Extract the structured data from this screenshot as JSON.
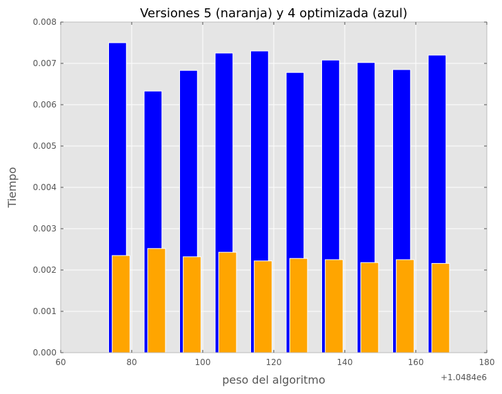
{
  "chart_data": {
    "type": "bar",
    "title": "Versiones 5 (naranja) y 4 optimizada (azul)",
    "xlabel": "peso del algoritmo",
    "ylabel": "Tiempo",
    "x_offset_label": "+1.0484e6",
    "xlim": [
      60,
      180
    ],
    "ylim": [
      0,
      0.008
    ],
    "x_ticks": [
      60,
      80,
      100,
      120,
      140,
      160,
      180
    ],
    "y_ticks": [
      0.0,
      0.001,
      0.002,
      0.003,
      0.004,
      0.005,
      0.006,
      0.007,
      0.008
    ],
    "x_tick_labels": [
      "60",
      "80",
      "100",
      "120",
      "140",
      "160",
      "180"
    ],
    "y_tick_labels": [
      "0.000",
      "0.001",
      "0.002",
      "0.003",
      "0.004",
      "0.005",
      "0.006",
      "0.007",
      "0.008"
    ],
    "grid": true,
    "background": "#e5e5e5",
    "series": [
      {
        "color": "#0000ff",
        "bar_width": 5,
        "x": [
          73.5,
          83.5,
          93.5,
          103.5,
          113.5,
          123.5,
          133.5,
          143.5,
          153.5,
          163.5
        ],
        "values": [
          0.0075,
          0.00633,
          0.00683,
          0.00725,
          0.0073,
          0.00678,
          0.00708,
          0.00702,
          0.00685,
          0.0072
        ]
      },
      {
        "color": "#ffa500",
        "bar_width": 5,
        "x": [
          74.5,
          84.5,
          94.5,
          104.5,
          114.5,
          124.5,
          134.5,
          144.5,
          154.5,
          164.5
        ],
        "values": [
          0.00235,
          0.00252,
          0.00232,
          0.00243,
          0.00222,
          0.00228,
          0.00225,
          0.00218,
          0.00225,
          0.00216
        ]
      }
    ]
  }
}
